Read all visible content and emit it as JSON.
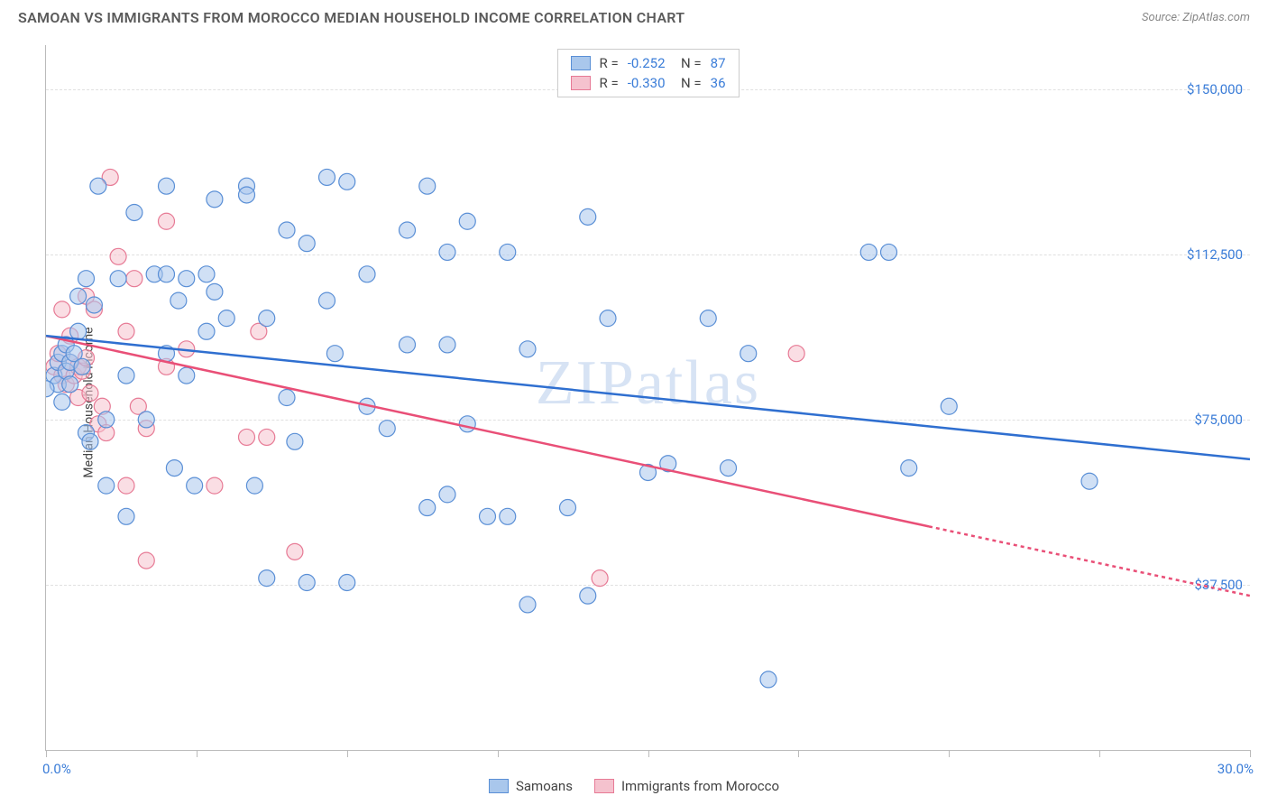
{
  "header": {
    "title": "SAMOAN VS IMMIGRANTS FROM MOROCCO MEDIAN HOUSEHOLD INCOME CORRELATION CHART",
    "source": "Source: ZipAtlas.com"
  },
  "watermark": {
    "part1": "ZIP",
    "part2": "atlas"
  },
  "chart": {
    "type": "scatter",
    "xlim": [
      0,
      30
    ],
    "ylim": [
      0,
      160000
    ],
    "x_axis_label_left": "0.0%",
    "x_axis_label_right": "30.0%",
    "y_axis_title": "Median Household Income",
    "y_ticks": [
      {
        "v": 37500,
        "label": "$37,500"
      },
      {
        "v": 75000,
        "label": "$75,000"
      },
      {
        "v": 112500,
        "label": "$112,500"
      },
      {
        "v": 150000,
        "label": "$150,000"
      }
    ],
    "x_tick_positions": [
      0,
      3.75,
      7.5,
      11.25,
      15,
      18.75,
      22.5,
      26.25,
      30
    ],
    "grid_color": "#e0e0e0",
    "background_color": "#ffffff",
    "marker_radius": 9,
    "marker_opacity": 0.55,
    "series": [
      {
        "id": "samoans",
        "label": "Samoans",
        "fill": "#a9c7ec",
        "stroke": "#5a8fd6",
        "line_color": "#2f6fd0",
        "R": "-0.252",
        "N": "87",
        "trend": {
          "x1": 0,
          "y1": 94000,
          "x2": 30,
          "y2": 66000,
          "solid_until_x": 30
        },
        "points": [
          [
            0.2,
            85000
          ],
          [
            0.3,
            83000
          ],
          [
            0.3,
            88000
          ],
          [
            0.4,
            90000
          ],
          [
            0.4,
            79000
          ],
          [
            0.5,
            86000
          ],
          [
            0.5,
            92000
          ],
          [
            0.6,
            88000
          ],
          [
            0.6,
            83000
          ],
          [
            0.7,
            90000
          ],
          [
            0.8,
            103000
          ],
          [
            0.8,
            95000
          ],
          [
            0.9,
            87000
          ],
          [
            1.0,
            72000
          ],
          [
            1.0,
            107000
          ],
          [
            1.1,
            70000
          ],
          [
            1.2,
            101000
          ],
          [
            1.3,
            128000
          ],
          [
            1.5,
            60000
          ],
          [
            1.5,
            75000
          ],
          [
            1.8,
            107000
          ],
          [
            2.0,
            53000
          ],
          [
            2.0,
            85000
          ],
          [
            2.2,
            122000
          ],
          [
            2.5,
            75000
          ],
          [
            2.7,
            108000
          ],
          [
            3.0,
            108000
          ],
          [
            3.0,
            128000
          ],
          [
            3.0,
            90000
          ],
          [
            3.2,
            64000
          ],
          [
            3.3,
            102000
          ],
          [
            3.5,
            85000
          ],
          [
            3.5,
            107000
          ],
          [
            3.7,
            60000
          ],
          [
            4.0,
            108000
          ],
          [
            4.0,
            95000
          ],
          [
            4.2,
            125000
          ],
          [
            4.2,
            104000
          ],
          [
            4.5,
            98000
          ],
          [
            5.0,
            128000
          ],
          [
            5.0,
            126000
          ],
          [
            5.2,
            60000
          ],
          [
            5.5,
            39000
          ],
          [
            5.5,
            98000
          ],
          [
            6.0,
            118000
          ],
          [
            6.0,
            80000
          ],
          [
            6.2,
            70000
          ],
          [
            6.5,
            38000
          ],
          [
            6.5,
            115000
          ],
          [
            7.0,
            130000
          ],
          [
            7.0,
            102000
          ],
          [
            7.2,
            90000
          ],
          [
            7.5,
            129000
          ],
          [
            7.5,
            38000
          ],
          [
            8.0,
            108000
          ],
          [
            8.0,
            78000
          ],
          [
            8.5,
            73000
          ],
          [
            9.0,
            118000
          ],
          [
            9.0,
            92000
          ],
          [
            9.5,
            128000
          ],
          [
            9.5,
            55000
          ],
          [
            10.0,
            58000
          ],
          [
            10.0,
            92000
          ],
          [
            10.0,
            113000
          ],
          [
            10.5,
            120000
          ],
          [
            10.5,
            74000
          ],
          [
            11.0,
            53000
          ],
          [
            11.5,
            53000
          ],
          [
            11.5,
            113000
          ],
          [
            12.0,
            33000
          ],
          [
            12.0,
            91000
          ],
          [
            13.0,
            55000
          ],
          [
            13.5,
            121000
          ],
          [
            13.5,
            35000
          ],
          [
            14.0,
            98000
          ],
          [
            15.0,
            63000
          ],
          [
            15.5,
            65000
          ],
          [
            16.5,
            98000
          ],
          [
            17.0,
            64000
          ],
          [
            17.5,
            90000
          ],
          [
            18.0,
            16000
          ],
          [
            20.5,
            113000
          ],
          [
            21.0,
            113000
          ],
          [
            21.5,
            64000
          ],
          [
            22.5,
            78000
          ],
          [
            26.0,
            61000
          ],
          [
            0.0,
            82000
          ]
        ]
      },
      {
        "id": "morocco",
        "label": "Immigrants from Morocco",
        "fill": "#f5c2ce",
        "stroke": "#e77a95",
        "line_color": "#e94f77",
        "R": "-0.330",
        "N": "36",
        "trend": {
          "x1": 0,
          "y1": 94000,
          "x2": 30,
          "y2": 35000,
          "solid_until_x": 22
        },
        "points": [
          [
            0.2,
            87000
          ],
          [
            0.3,
            90000
          ],
          [
            0.4,
            100000
          ],
          [
            0.4,
            85000
          ],
          [
            0.5,
            83000
          ],
          [
            0.6,
            88000
          ],
          [
            0.6,
            94000
          ],
          [
            0.7,
            85000
          ],
          [
            0.8,
            87000
          ],
          [
            0.8,
            80000
          ],
          [
            0.9,
            86000
          ],
          [
            1.0,
            103000
          ],
          [
            1.0,
            89000
          ],
          [
            1.1,
            81000
          ],
          [
            1.2,
            100000
          ],
          [
            1.3,
            74000
          ],
          [
            1.4,
            78000
          ],
          [
            1.5,
            72000
          ],
          [
            1.6,
            130000
          ],
          [
            1.8,
            112000
          ],
          [
            2.0,
            95000
          ],
          [
            2.0,
            60000
          ],
          [
            2.2,
            107000
          ],
          [
            2.3,
            78000
          ],
          [
            2.5,
            73000
          ],
          [
            2.5,
            43000
          ],
          [
            3.0,
            120000
          ],
          [
            3.0,
            87000
          ],
          [
            3.5,
            91000
          ],
          [
            4.2,
            60000
          ],
          [
            5.0,
            71000
          ],
          [
            5.3,
            95000
          ],
          [
            5.5,
            71000
          ],
          [
            6.2,
            45000
          ],
          [
            13.8,
            39000
          ],
          [
            18.7,
            90000
          ]
        ]
      }
    ]
  },
  "bottom_legend": {
    "item1": "Samoans",
    "item2": "Immigrants from Morocco"
  }
}
